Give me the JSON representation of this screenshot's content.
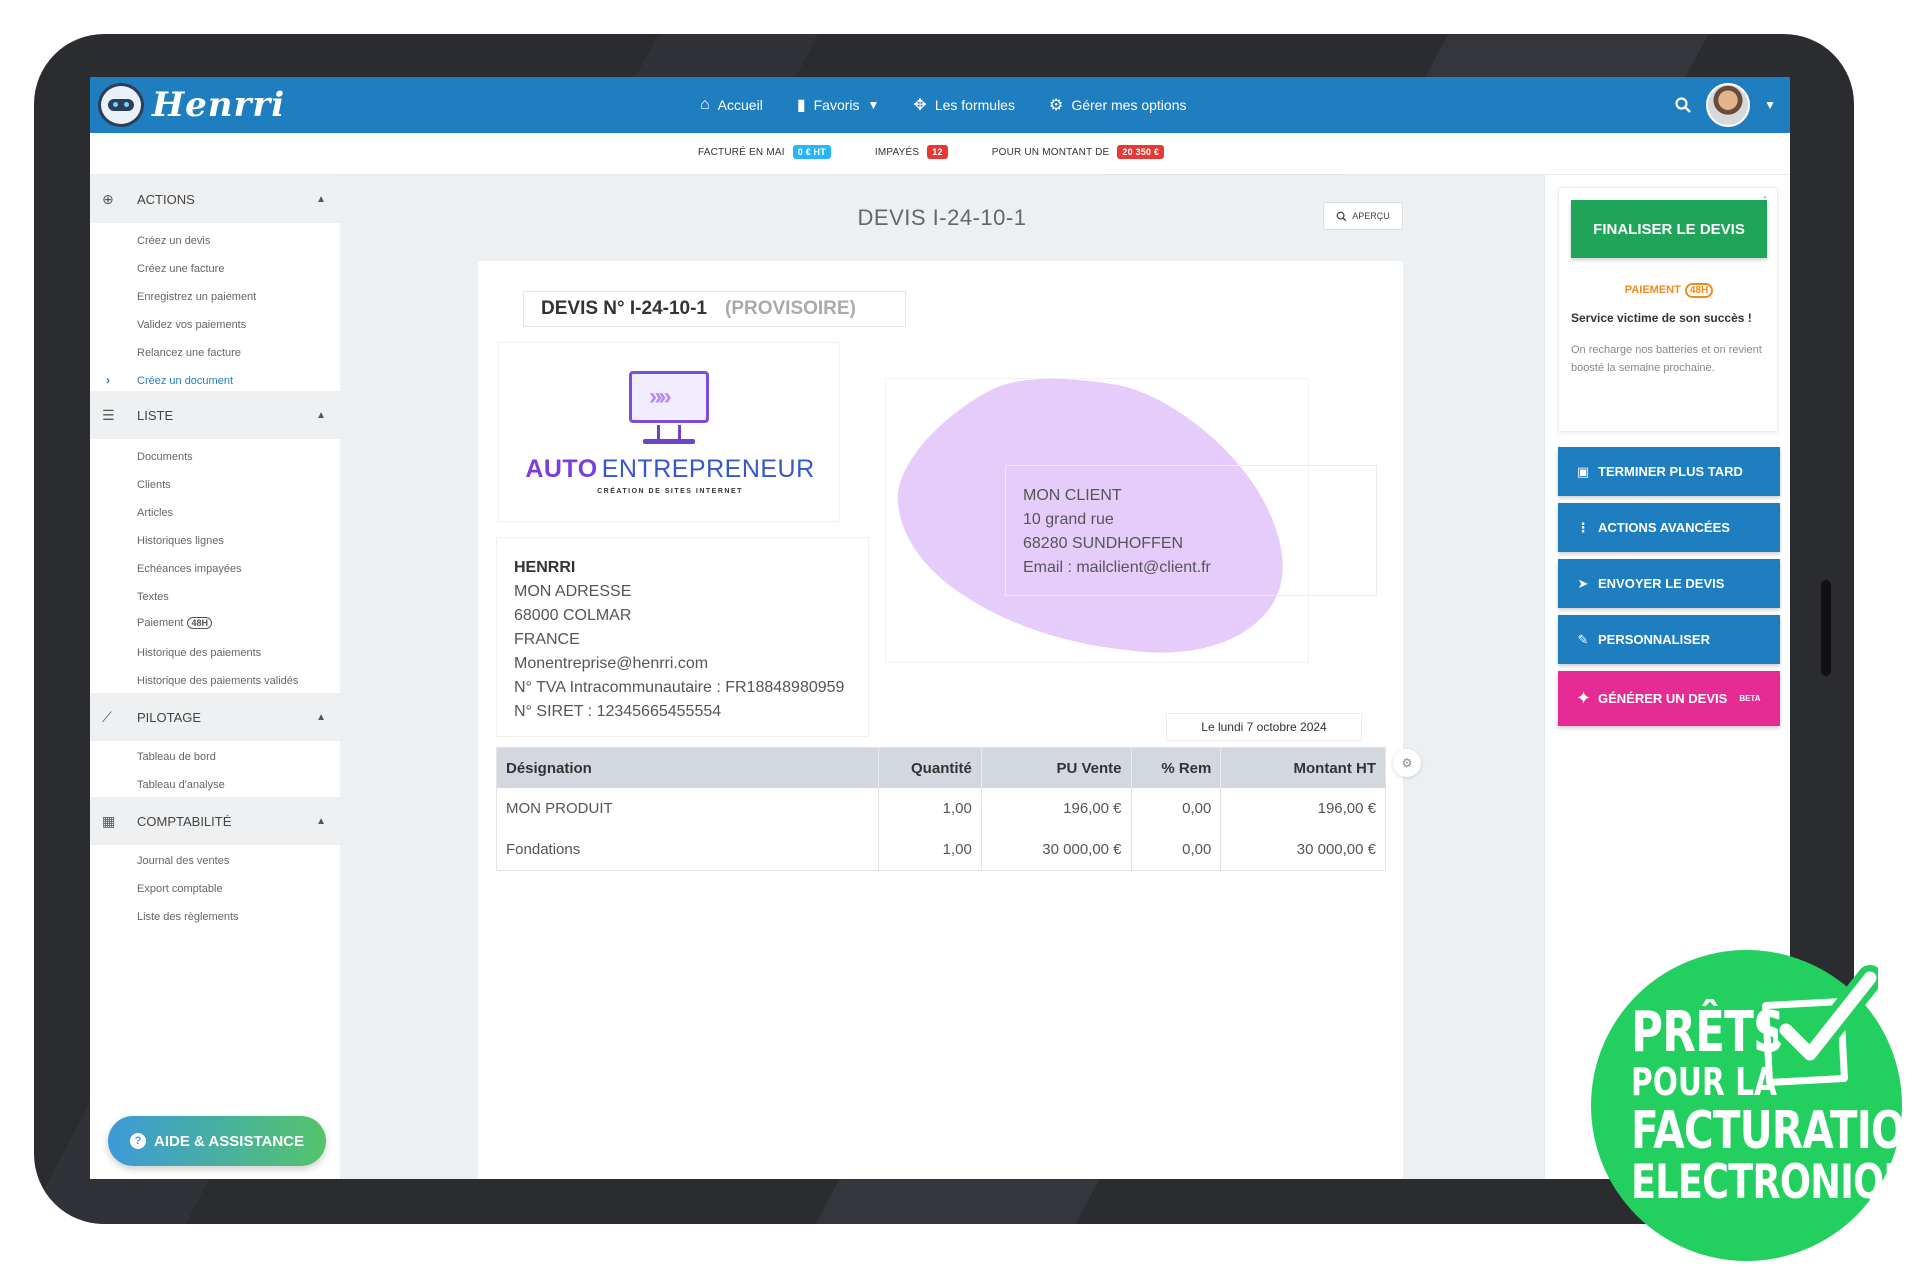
{
  "app": {
    "logo_text": "Henrri"
  },
  "topnav": {
    "items": [
      {
        "icon": "home-icon",
        "label": "Accueil"
      },
      {
        "icon": "bookmark-icon",
        "label": "Favoris"
      },
      {
        "icon": "formula-icon",
        "label": "Les formules"
      },
      {
        "icon": "options-icon",
        "label": "Gérer mes options"
      }
    ]
  },
  "stats": {
    "invoiced_label": "FACTURÉ EN MAI",
    "invoiced_value": "0 € HT",
    "unpaid_label": "IMPAYÉS",
    "unpaid_value": "12",
    "amount_label": "POUR UN MONTANT DE",
    "amount_value": "20 350 €"
  },
  "sidebar": {
    "sections": [
      {
        "title": "ACTIONS",
        "items": [
          "Créez un devis",
          "Créez une facture",
          "Enregistrez un paiement",
          "Validez vos paiements",
          "Relancez une facture",
          "Créez un document"
        ]
      },
      {
        "title": "LISTE",
        "items": [
          "Documents",
          "Clients",
          "Articles",
          "Historiques lignes",
          "Echéances impayées",
          "Textes",
          "Paiement",
          "Historique des paiements",
          "Historique des paiements validés"
        ]
      },
      {
        "title": "PILOTAGE",
        "items": [
          "Tableau de bord",
          "Tableau d'analyse"
        ]
      },
      {
        "title": "COMPTABILITÉ",
        "items": [
          "Journal des ventes",
          "Export comptable",
          "Liste des règlements"
        ]
      }
    ],
    "paiement_tag": "48H",
    "help_label": "AIDE & ASSISTANCE"
  },
  "main": {
    "page_title": "DEVIS I-24-10-1",
    "apercu_label": "APERÇU",
    "devis_label": "DEVIS N° I-24-10-1",
    "provisoire_label": "(PROVISOIRE)",
    "logo": {
      "part1": "AUTO",
      "part2": "ENTREPRENEUR",
      "tagline": "CRÉATION DE SITES INTERNET"
    },
    "company": {
      "name": "HENRRI",
      "address": "MON ADRESSE",
      "city": "68000 COLMAR",
      "country": "FRANCE",
      "email": "Monentreprise@henrri.com",
      "tva": "N° TVA Intracommunautaire : FR18848980959",
      "siret": "N° SIRET : 12345665455554"
    },
    "client": {
      "name": "MON CLIENT",
      "address": "10 grand rue",
      "city": "68280 SUNDHOFFEN",
      "email": "Email : mailclient@client.fr"
    },
    "date": "Le lundi 7 octobre 2024",
    "table": {
      "headers": [
        "Désignation",
        "Quantité",
        "PU Vente",
        "% Rem",
        "Montant HT"
      ],
      "rows": [
        [
          "MON PRODUIT",
          "1,00",
          "196,00 €",
          "0,00",
          "196,00 €"
        ],
        [
          "Fondations",
          "1,00",
          "30 000,00 €",
          "0,00",
          "30 000,00 €"
        ]
      ]
    }
  },
  "right_panel": {
    "finalize_label": "FINALISER LE DEVIS",
    "promo_badge": "PAIEMENT",
    "promo_badge_tag": "48H",
    "promo_title": "Service victime de son succès !",
    "promo_text": "On recharge nos batteries et on revient boosté la semaine prochaine.",
    "buttons": [
      {
        "icon": "save-icon",
        "label": "TERMINER PLUS TARD"
      },
      {
        "icon": "more-vertical-icon",
        "label": "ACTIONS AVANCÉES"
      },
      {
        "icon": "send-icon",
        "label": "ENVOYER LE DEVIS"
      },
      {
        "icon": "pencil-icon",
        "label": "PERSONNALISER"
      },
      {
        "icon": "sparkle-icon",
        "label": "GÉNÉRER UN DEVIS",
        "tag": "BETA"
      }
    ]
  },
  "seal": {
    "line1": "PRÊTS",
    "line2": "POUR LA",
    "line3": "FACTURATION",
    "line4": "ELECTRONIQUE"
  },
  "colors": {
    "primary": "#1f7ec0",
    "success": "#1fa45a",
    "pink": "#e72b95",
    "seal": "#23cf5f",
    "blob": "#e6ccfb"
  }
}
